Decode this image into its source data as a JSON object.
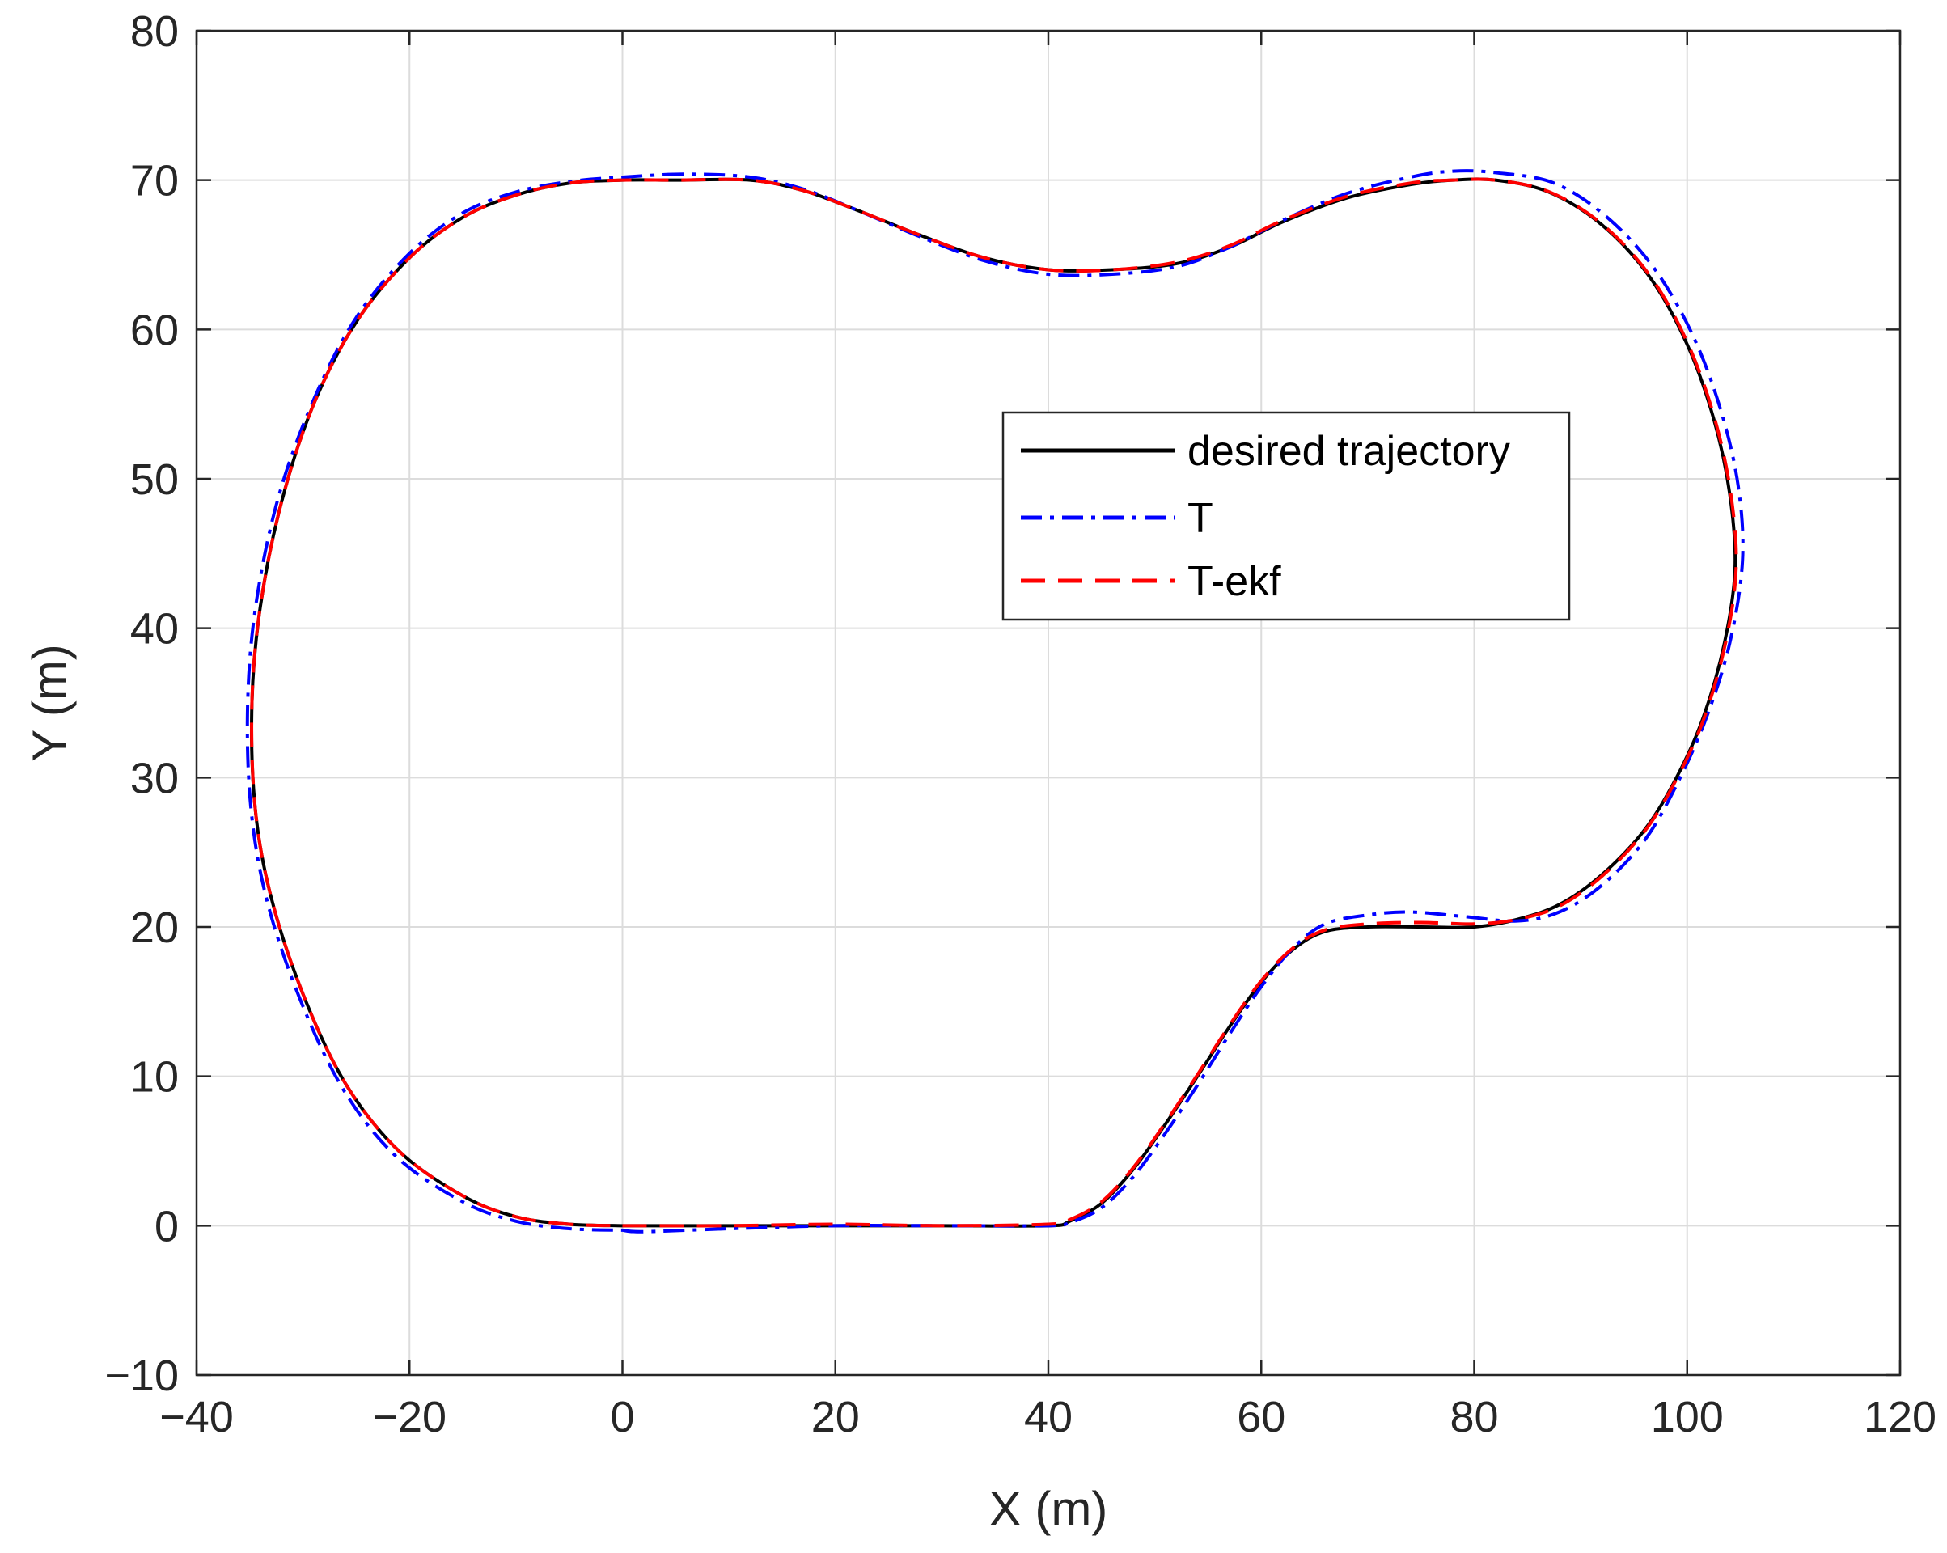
{
  "chart_data": {
    "type": "line",
    "title": "",
    "xlabel": "X (m)",
    "ylabel": "Y (m)",
    "xlim": [
      -40,
      120
    ],
    "ylim": [
      -10,
      80
    ],
    "xticks": [
      -40,
      -20,
      0,
      20,
      40,
      60,
      80,
      100,
      120
    ],
    "yticks": [
      -10,
      0,
      10,
      20,
      30,
      40,
      50,
      60,
      70,
      80
    ],
    "xtick_labels": [
      "−40",
      "−20",
      "0",
      "20",
      "40",
      "60",
      "80",
      "100",
      "120"
    ],
    "ytick_labels": [
      "−10",
      "0",
      "10",
      "20",
      "30",
      "40",
      "50",
      "60",
      "70",
      "80"
    ],
    "grid": true,
    "legend_position": "upper-center-right",
    "series": [
      {
        "name": "desired trajectory",
        "color": "#000000",
        "style": "solid",
        "points": [
          [
            0,
            0
          ],
          [
            10,
            0
          ],
          [
            20,
            0
          ],
          [
            30,
            0
          ],
          [
            40,
            0
          ],
          [
            42,
            0.3
          ],
          [
            45,
            1.5
          ],
          [
            48,
            3.8
          ],
          [
            51,
            6.8
          ],
          [
            54,
            10
          ],
          [
            57,
            13.3
          ],
          [
            60,
            16.3
          ],
          [
            63,
            18.5
          ],
          [
            66,
            19.7
          ],
          [
            70,
            20
          ],
          [
            75,
            20
          ],
          [
            80,
            20
          ],
          [
            84,
            20.5
          ],
          [
            88,
            21.5
          ],
          [
            92,
            23.5
          ],
          [
            96,
            26.5
          ],
          [
            99,
            30
          ],
          [
            101.5,
            34
          ],
          [
            103.5,
            39
          ],
          [
            104.5,
            44
          ],
          [
            104,
            49
          ],
          [
            102.5,
            54
          ],
          [
            100,
            59
          ],
          [
            96.5,
            63.5
          ],
          [
            92,
            67
          ],
          [
            87,
            69.2
          ],
          [
            82,
            70
          ],
          [
            78,
            70
          ],
          [
            74,
            69.7
          ],
          [
            68,
            68.8
          ],
          [
            62,
            67.2
          ],
          [
            57,
            65.5
          ],
          [
            52,
            64.4
          ],
          [
            46,
            64
          ],
          [
            40,
            64
          ],
          [
            34,
            64.8
          ],
          [
            28,
            66.3
          ],
          [
            22,
            68
          ],
          [
            17,
            69.3
          ],
          [
            12,
            70
          ],
          [
            5,
            70
          ],
          [
            0,
            70
          ],
          [
            -5,
            69.8
          ],
          [
            -10,
            69
          ],
          [
            -15,
            67.5
          ],
          [
            -20,
            64.8
          ],
          [
            -25,
            60.5
          ],
          [
            -29,
            55
          ],
          [
            -32,
            48.5
          ],
          [
            -34,
            41.5
          ],
          [
            -34.8,
            35
          ],
          [
            -34.5,
            28
          ],
          [
            -33,
            22
          ],
          [
            -30,
            15.5
          ],
          [
            -26,
            9.5
          ],
          [
            -21,
            5
          ],
          [
            -15,
            2
          ],
          [
            -10,
            0.6
          ],
          [
            -5,
            0.1
          ],
          [
            0,
            0
          ]
        ]
      },
      {
        "name": "T",
        "color": "#0000ff",
        "style": "dashdot",
        "points": [
          [
            0,
            -0.3
          ],
          [
            2,
            -0.4
          ],
          [
            10,
            -0.2
          ],
          [
            20,
            0
          ],
          [
            30,
            0
          ],
          [
            40,
            0
          ],
          [
            42,
            0.2
          ],
          [
            45,
            1.2
          ],
          [
            48,
            3.3
          ],
          [
            51,
            6.2
          ],
          [
            54,
            9.4
          ],
          [
            57,
            12.8
          ],
          [
            60,
            16
          ],
          [
            63,
            18.6
          ],
          [
            66,
            20.2
          ],
          [
            70,
            20.8
          ],
          [
            74,
            21
          ],
          [
            79,
            20.7
          ],
          [
            84,
            20.4
          ],
          [
            88,
            21
          ],
          [
            92,
            22.8
          ],
          [
            96,
            25.8
          ],
          [
            99,
            29.5
          ],
          [
            101.8,
            34
          ],
          [
            104,
            39
          ],
          [
            105.2,
            44.5
          ],
          [
            104.8,
            49.5
          ],
          [
            103.2,
            54.5
          ],
          [
            100.6,
            59.5
          ],
          [
            97,
            64
          ],
          [
            92.5,
            67.5
          ],
          [
            87.5,
            69.8
          ],
          [
            82,
            70.5
          ],
          [
            78,
            70.6
          ],
          [
            74,
            70.2
          ],
          [
            68,
            69.1
          ],
          [
            62,
            67.3
          ],
          [
            57,
            65.5
          ],
          [
            52,
            64.2
          ],
          [
            46,
            63.7
          ],
          [
            40,
            63.7
          ],
          [
            34,
            64.6
          ],
          [
            28,
            66.2
          ],
          [
            22,
            68
          ],
          [
            17,
            69.4
          ],
          [
            12,
            70.2
          ],
          [
            6,
            70.4
          ],
          [
            0,
            70.2
          ],
          [
            -5,
            69.9
          ],
          [
            -10,
            69.2
          ],
          [
            -15,
            67.8
          ],
          [
            -20,
            65.1
          ],
          [
            -25,
            60.8
          ],
          [
            -29,
            55.3
          ],
          [
            -32.3,
            48.8
          ],
          [
            -34.4,
            41.7
          ],
          [
            -35.2,
            35
          ],
          [
            -34.9,
            28
          ],
          [
            -33.4,
            21.8
          ],
          [
            -30.3,
            15.2
          ],
          [
            -26.2,
            9.1
          ],
          [
            -21.2,
            4.6
          ],
          [
            -15,
            1.6
          ],
          [
            -10,
            0.3
          ],
          [
            -5,
            -0.2
          ],
          [
            0,
            -0.3
          ]
        ]
      },
      {
        "name": "T-ekf",
        "color": "#ff0000",
        "style": "dashed",
        "points": [
          [
            0,
            0
          ],
          [
            10,
            0
          ],
          [
            20,
            0.1
          ],
          [
            30,
            0
          ],
          [
            40,
            0.1
          ],
          [
            42,
            0.4
          ],
          [
            45,
            1.6
          ],
          [
            48,
            3.9
          ],
          [
            51,
            6.9
          ],
          [
            54,
            10.1
          ],
          [
            57,
            13.4
          ],
          [
            60,
            16.4
          ],
          [
            63,
            18.6
          ],
          [
            66,
            19.8
          ],
          [
            70,
            20.2
          ],
          [
            75,
            20.3
          ],
          [
            80,
            20.2
          ],
          [
            84,
            20.5
          ],
          [
            88,
            21.4
          ],
          [
            92,
            23.4
          ],
          [
            96,
            26.4
          ],
          [
            99,
            29.9
          ],
          [
            101.6,
            34
          ],
          [
            103.6,
            39
          ],
          [
            104.6,
            44
          ],
          [
            104.1,
            49
          ],
          [
            102.6,
            54
          ],
          [
            100.1,
            59
          ],
          [
            96.6,
            63.5
          ],
          [
            92.1,
            67
          ],
          [
            87.1,
            69.2
          ],
          [
            82,
            70
          ],
          [
            78,
            70
          ],
          [
            74,
            69.8
          ],
          [
            68,
            68.9
          ],
          [
            62,
            67.3
          ],
          [
            57,
            65.6
          ],
          [
            52,
            64.5
          ],
          [
            46,
            64
          ],
          [
            40,
            64
          ],
          [
            34,
            64.8
          ],
          [
            28,
            66.3
          ],
          [
            22,
            68
          ],
          [
            17,
            69.3
          ],
          [
            12,
            70
          ],
          [
            5,
            70
          ],
          [
            0,
            70
          ],
          [
            -5,
            69.8
          ],
          [
            -10,
            69
          ],
          [
            -15,
            67.5
          ],
          [
            -20,
            64.8
          ],
          [
            -25,
            60.5
          ],
          [
            -29,
            55
          ],
          [
            -32,
            48.5
          ],
          [
            -34,
            41.5
          ],
          [
            -34.8,
            35
          ],
          [
            -34.5,
            28
          ],
          [
            -33,
            22
          ],
          [
            -30,
            15.5
          ],
          [
            -26,
            9.5
          ],
          [
            -21,
            5
          ],
          [
            -15,
            2
          ],
          [
            -10,
            0.6
          ],
          [
            -5,
            0.1
          ],
          [
            0,
            0
          ]
        ]
      }
    ]
  }
}
